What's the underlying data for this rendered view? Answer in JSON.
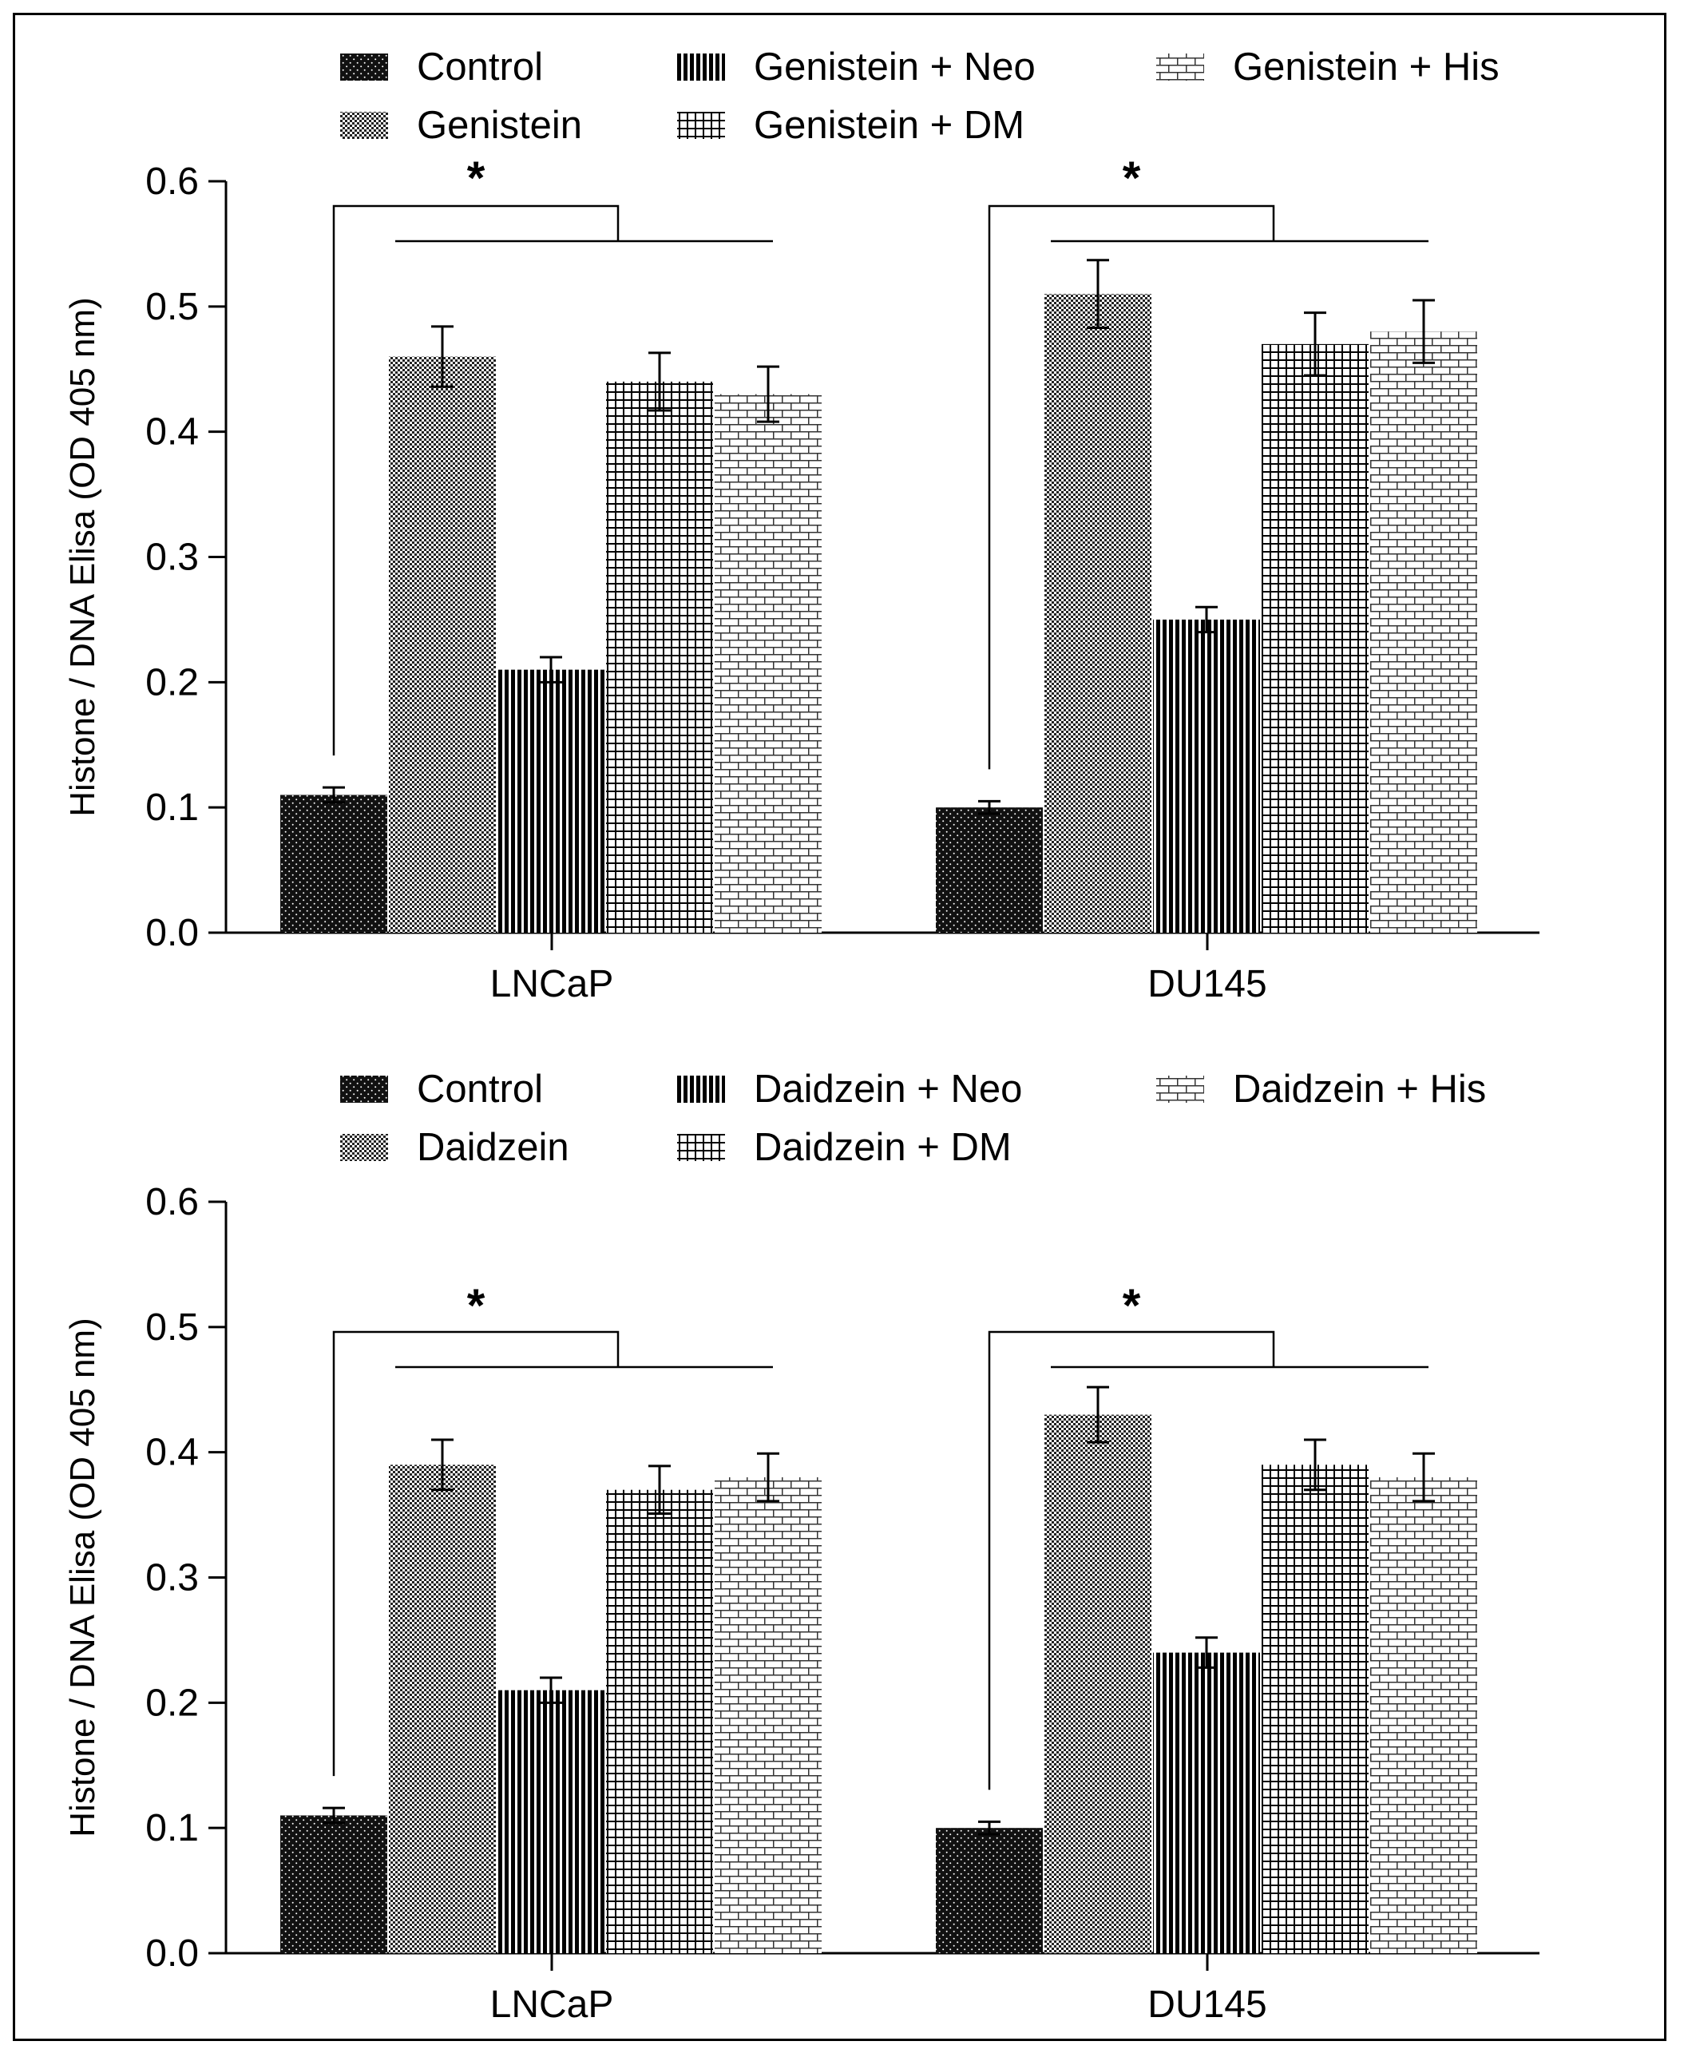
{
  "chart_data": [
    {
      "type": "bar",
      "categories": [
        "LNCaP",
        "DU145"
      ],
      "ylabel": "Histone / DNA Elisa (OD 405 nm)",
      "ylim": [
        0,
        0.6
      ],
      "yticks": [
        "0.0",
        "0.1",
        "0.2",
        "0.3",
        "0.4",
        "0.5",
        "0.6"
      ],
      "legend_placement": "top",
      "significance_label": "*",
      "series": [
        {
          "name": "Control",
          "values": [
            0.11,
            0.1
          ],
          "errors": [
            0.006,
            0.005
          ],
          "pattern": "dots"
        },
        {
          "name": "Genistein",
          "values": [
            0.46,
            0.51
          ],
          "errors": [
            0.024,
            0.027
          ],
          "pattern": "checker"
        },
        {
          "name": "Genistein + Neo",
          "values": [
            0.21,
            0.25
          ],
          "errors": [
            0.01,
            0.01
          ],
          "pattern": "vertical"
        },
        {
          "name": "Genistein + DM",
          "values": [
            0.44,
            0.47
          ],
          "errors": [
            0.023,
            0.025
          ],
          "pattern": "grid"
        },
        {
          "name": "Genistein + His",
          "values": [
            0.43,
            0.48
          ],
          "errors": [
            0.022,
            0.025
          ],
          "pattern": "brick"
        }
      ]
    },
    {
      "type": "bar",
      "categories": [
        "LNCaP",
        "DU145"
      ],
      "ylabel": "Histone / DNA Elisa (OD 405 nm)",
      "ylim": [
        0,
        0.6
      ],
      "yticks": [
        "0.0",
        "0.1",
        "0.2",
        "0.3",
        "0.4",
        "0.5",
        "0.6"
      ],
      "legend_placement": "top",
      "significance_label": "*",
      "series": [
        {
          "name": "Control",
          "values": [
            0.11,
            0.1
          ],
          "errors": [
            0.006,
            0.005
          ],
          "pattern": "dots"
        },
        {
          "name": "Daidzein",
          "values": [
            0.39,
            0.43
          ],
          "errors": [
            0.02,
            0.022
          ],
          "pattern": "checker"
        },
        {
          "name": "Daidzein + Neo",
          "values": [
            0.21,
            0.24
          ],
          "errors": [
            0.01,
            0.012
          ],
          "pattern": "vertical"
        },
        {
          "name": "Daidzein + DM",
          "values": [
            0.37,
            0.39
          ],
          "errors": [
            0.019,
            0.02
          ],
          "pattern": "grid"
        },
        {
          "name": "Daidzein + His",
          "values": [
            0.38,
            0.38
          ],
          "errors": [
            0.019,
            0.019
          ],
          "pattern": "brick"
        }
      ]
    }
  ]
}
